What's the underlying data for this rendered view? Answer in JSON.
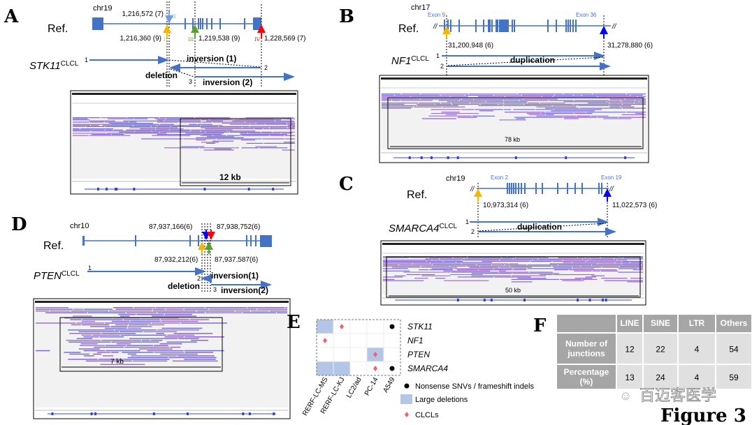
{
  "panels": {
    "A": {
      "label": "A",
      "chr": "chr19",
      "ref": "Ref.",
      "gene": "STK11",
      "sup": "CLCL",
      "positions": [
        "1,216,572 (7)",
        "1,216,360 (9)",
        "1,219,538 (9)",
        "1,228,569 (7)"
      ],
      "breakpoints": [
        "II",
        "I",
        "III",
        "IV"
      ],
      "events": [
        "inversion (1)",
        "deletion",
        "inversion (2)"
      ],
      "segments": [
        "1",
        "2",
        "3"
      ],
      "scale": "12 kb"
    },
    "B": {
      "label": "B",
      "chr": "chr17",
      "ref": "Ref.",
      "exons": [
        "Exon 9",
        "Exon 36"
      ],
      "gene": "NF1",
      "sup": "CLCL",
      "positions": [
        "31,200,948 (6)",
        "31,278,880 (6)"
      ],
      "events": [
        "duplication"
      ],
      "segments": [
        "1",
        "2"
      ],
      "scale": "78 kb"
    },
    "C": {
      "label": "C",
      "chr": "chr19",
      "ref": "Ref.",
      "exons": [
        "Exon 2",
        "Exon 19"
      ],
      "gene": "SMARCA4",
      "sup": "CLCL",
      "positions": [
        "10,973,314 (6)",
        "11,022,573 (6)"
      ],
      "events": [
        "duplication"
      ],
      "segments": [
        "1",
        "2"
      ],
      "scale": "50 kb"
    },
    "D": {
      "label": "D",
      "chr": "chr10",
      "ref": "Ref.",
      "gene": "PTEN",
      "sup": "CLCL",
      "positions": [
        "87,937,166(6)",
        "87,938,752(6)",
        "87,932,212(6)",
        "87,937,587(6)"
      ],
      "events": [
        "inversion(1)",
        "deletion",
        "inversion(2)"
      ],
      "segments": [
        "1",
        "2",
        "3"
      ],
      "scale": "7 kb"
    },
    "E": {
      "label": "E",
      "genes": [
        "STK11",
        "NF1",
        "PTEN",
        "SMARCA4"
      ],
      "cell_lines": [
        "RERF-LC-MS",
        "RERF-LC-KJ",
        "LC2/ad",
        "PC-14",
        "A549"
      ],
      "large_deletions": [
        [
          0,
          0
        ],
        [
          0,
          3
        ],
        [
          1,
          3
        ],
        [
          3,
          2
        ]
      ],
      "clcls": [
        [
          1,
          0
        ],
        [
          0,
          1
        ],
        [
          3,
          2
        ],
        [
          3,
          3
        ]
      ],
      "nonsense": [
        [
          4,
          0
        ],
        [
          4,
          3
        ]
      ],
      "legend": [
        "Nonsense SNVs / frameshift indels",
        "Large deletions",
        "CLCLs"
      ],
      "colors": {
        "deletion": "#b4c6e7",
        "clcl": "#f4606a",
        "nonsense": "#000000"
      }
    },
    "F": {
      "label": "F",
      "columns": [
        "",
        "LINE",
        "SINE",
        "LTR",
        "Others"
      ],
      "rows": [
        {
          "header": [
            "Number of",
            "junctions"
          ],
          "values": [
            "12",
            "22",
            "4",
            "54"
          ]
        },
        {
          "header": [
            "Percentage",
            "(%)"
          ],
          "values": [
            "13",
            "24",
            "4",
            "59"
          ]
        }
      ]
    }
  },
  "watermark": "百迈客医学",
  "figure_label": "Figure 3",
  "colors": {
    "gene": "#4472c4",
    "bp_yellow": "#f5b700",
    "bp_green": "#5aa02c",
    "bp_red": "#ff0000",
    "bp_blue": "#0000ff",
    "table_header": "#a6a6a6",
    "table_cell": "#e0e0e0"
  }
}
